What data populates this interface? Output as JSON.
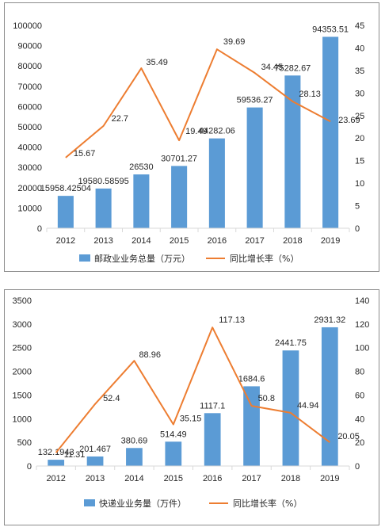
{
  "chart_data": [
    {
      "type": "bar",
      "categories": [
        "2012",
        "2013",
        "2014",
        "2015",
        "2016",
        "2017",
        "2018",
        "2019"
      ],
      "series": [
        {
          "name": "邮政业业务总量（万元）",
          "type": "bar",
          "axis": "left",
          "color": "#5b9bd5",
          "values": [
            15958.42504,
            19580.58595,
            26530,
            30701.27,
            44282.06,
            59536.27,
            75282.67,
            94353.51
          ],
          "labels": [
            "15958.42504",
            "19580.58595",
            "26530",
            "30701.27",
            "44282.06",
            "59536.27",
            "75282.67",
            "94353.51"
          ]
        },
        {
          "name": "同比增长率（%）",
          "type": "line",
          "axis": "right",
          "color": "#ed7d31",
          "values": [
            15.67,
            22.7,
            35.49,
            19.49,
            39.69,
            34.45,
            28.13,
            23.69
          ],
          "labels": [
            "15.67",
            "22.7",
            "35.49",
            "19.49",
            "39.69",
            "34.45",
            "28.13",
            "23.69"
          ]
        }
      ],
      "y_left": {
        "min": 0,
        "max": 100000,
        "step": 10000
      },
      "y_right": {
        "min": 0,
        "max": 45,
        "step": 5
      },
      "legend_position": "bottom",
      "grid": false
    },
    {
      "type": "bar",
      "categories": [
        "2012",
        "2013",
        "2014",
        "2015",
        "2016",
        "2017",
        "2018",
        "2019"
      ],
      "series": [
        {
          "name": "快递业业务量（万件）",
          "type": "bar",
          "axis": "left",
          "color": "#5b9bd5",
          "values": [
            132.1943,
            201.467,
            380.69,
            514.49,
            1117.1,
            1684.6,
            2441.75,
            2931.32
          ],
          "labels": [
            "132.1943",
            "201.467",
            "380.69",
            "514.49",
            "1117.1",
            "1684.6",
            "2441.75",
            "2931.32"
          ]
        },
        {
          "name": "同比增长率（%）",
          "type": "line",
          "axis": "right",
          "color": "#ed7d31",
          "values": [
            11.31,
            52.4,
            88.96,
            35.15,
            117.13,
            50.8,
            44.94,
            20.05
          ],
          "labels": [
            "11.31",
            "52.4",
            "88.96",
            "35.15",
            "117.13",
            "50.8",
            "44.94",
            "20.05"
          ]
        }
      ],
      "y_left": {
        "min": 0,
        "max": 3500,
        "step": 500
      },
      "y_right": {
        "min": 0,
        "max": 140,
        "step": 20
      },
      "legend_position": "bottom",
      "grid": false
    }
  ]
}
